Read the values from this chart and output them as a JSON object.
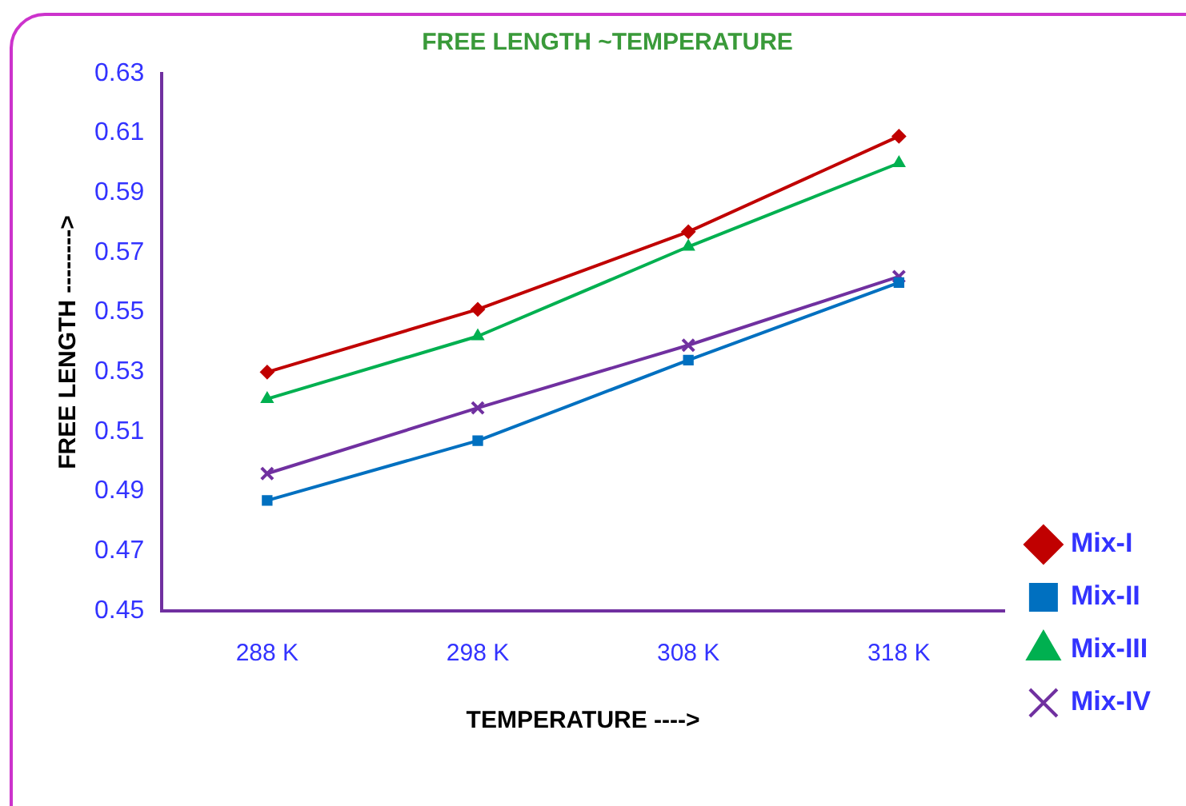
{
  "chart_data": {
    "type": "line",
    "title": "FREE LENGTH ~TEMPERATURE",
    "xlabel": "TEMPERATURE ---->",
    "ylabel": "FREE LENGTH -------->",
    "categories": [
      "288 K",
      "298 K",
      "308 K",
      "318 K"
    ],
    "series": [
      {
        "name": "Mix-I",
        "color": "#c00000",
        "marker": "diamond",
        "values": [
          0.53,
          0.551,
          0.577,
          0.609
        ]
      },
      {
        "name": "Mix-II",
        "color": "#0070c0",
        "marker": "square",
        "values": [
          0.487,
          0.507,
          0.534,
          0.56
        ]
      },
      {
        "name": "Mix-III",
        "color": "#00b050",
        "marker": "triangle",
        "values": [
          0.521,
          0.542,
          0.572,
          0.6
        ]
      },
      {
        "name": "Mix-IV",
        "color": "#7030a0",
        "marker": "cross",
        "values": [
          0.496,
          0.518,
          0.539,
          0.562
        ]
      }
    ],
    "ylim": [
      0.45,
      0.63
    ],
    "yticks": [
      0.45,
      0.47,
      0.49,
      0.51,
      0.53,
      0.55,
      0.57,
      0.59,
      0.61,
      0.63
    ],
    "grid": false,
    "legend": "right",
    "line_style": "solid"
  }
}
